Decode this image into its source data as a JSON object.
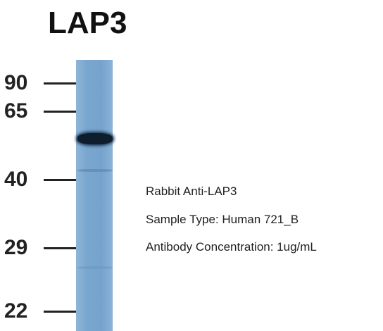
{
  "title": "LAP3",
  "markers": [
    90,
    65,
    40,
    29,
    22
  ],
  "annotations": [
    "Rabbit Anti-LAP3",
    "Sample Type: Human 721_B",
    "Antibody Concentration: 1ug/mL"
  ]
}
